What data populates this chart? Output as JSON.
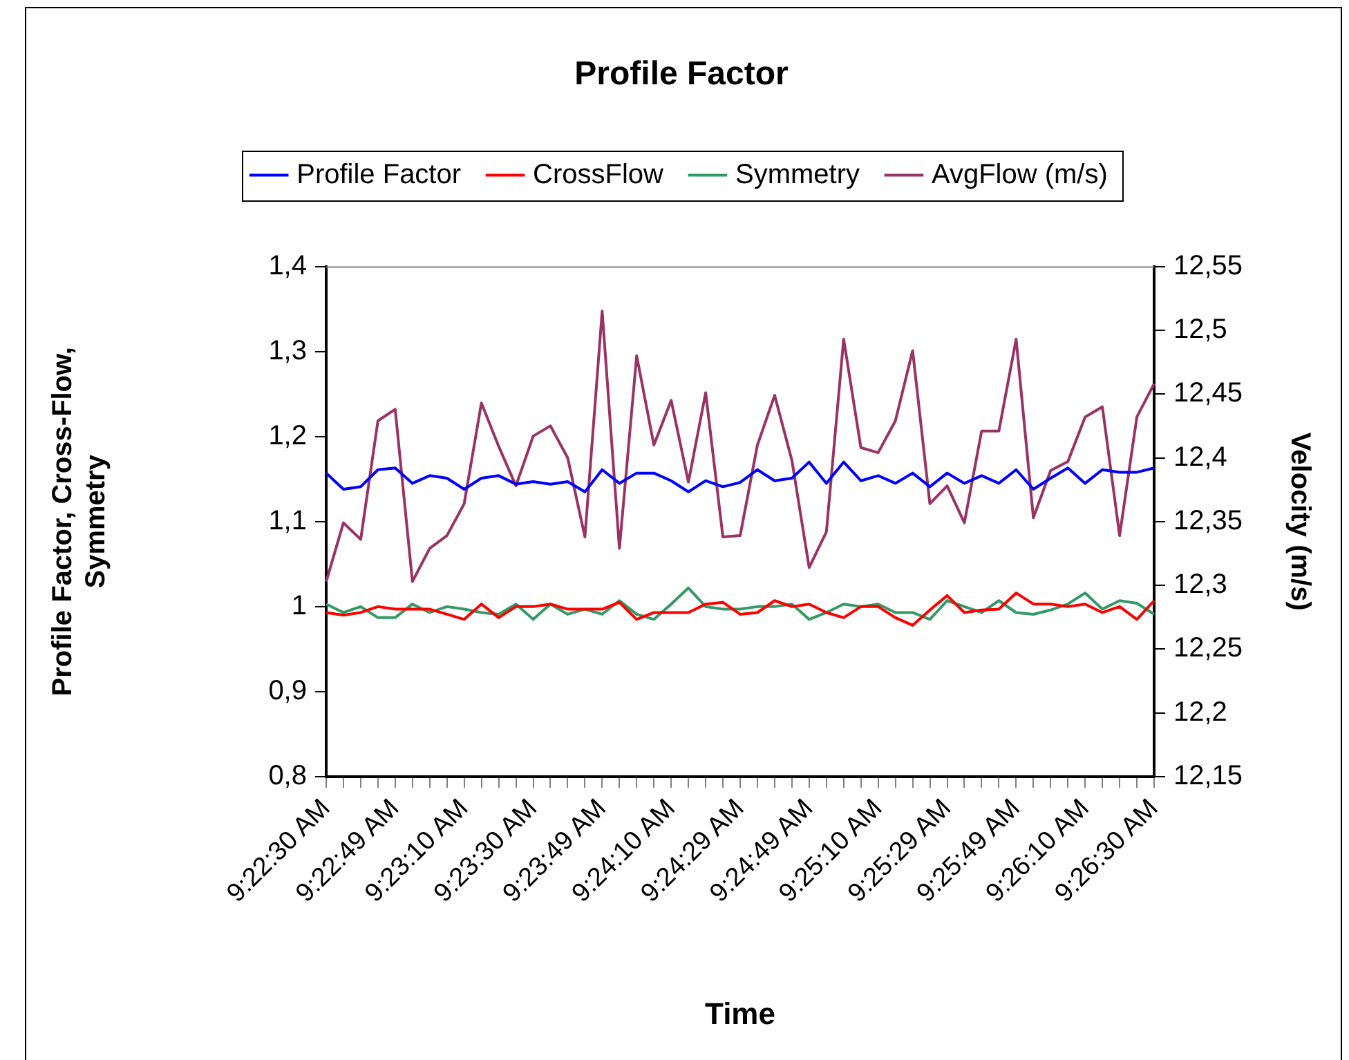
{
  "chart_data": {
    "type": "line",
    "title": "Profile Factor",
    "xlabel": "Time",
    "ylabel": "Profile Factor, Cross-Flow, Symmetry",
    "y2label": "Velocity (m/s)",
    "legend": "top",
    "marker": "none",
    "line_style": "solid",
    "categories": [
      "9:22:30 AM",
      null,
      null,
      null,
      "9:22:49 AM",
      null,
      null,
      null,
      "9:23:10 AM",
      null,
      null,
      null,
      "9:23:30 AM",
      null,
      null,
      null,
      "9:23:49 AM",
      null,
      null,
      null,
      "9:24:10 AM",
      null,
      null,
      null,
      "9:24:29 AM",
      null,
      null,
      null,
      "9:24:49 AM",
      null,
      null,
      null,
      "9:25:10 AM",
      null,
      null,
      null,
      "9:25:29 AM",
      null,
      null,
      null,
      "9:25:49 AM",
      null,
      null,
      null,
      "9:26:10 AM",
      null,
      null,
      null,
      "9:26:30 AM"
    ],
    "ylim": [
      0.8,
      1.4
    ],
    "yticks": [
      {
        "value": 0.8,
        "label": "0,8"
      },
      {
        "value": 0.9,
        "label": "0,9"
      },
      1,
      {
        "value": 1.1,
        "label": "1,1"
      },
      {
        "value": 1.2,
        "label": "1,2"
      },
      {
        "value": 1.3,
        "label": "1,3"
      },
      {
        "value": 1.4,
        "label": "1,4"
      }
    ],
    "y2lim": [
      12.15,
      12.55
    ],
    "y2ticks": [
      {
        "value": 12.15,
        "label": "12,15"
      },
      {
        "value": 12.2,
        "label": "12,2"
      },
      {
        "value": 12.25,
        "label": "12,25"
      },
      {
        "value": 12.3,
        "label": "12,3"
      },
      {
        "value": 12.35,
        "label": "12,35"
      },
      {
        "value": 12.4,
        "label": "12,4"
      },
      {
        "value": 12.45,
        "label": "12,45"
      },
      {
        "value": 12.5,
        "label": "12,5"
      },
      {
        "value": 12.55,
        "label": "12,55"
      }
    ],
    "series": [
      {
        "name": "Profile Factor",
        "color": "#0000ff",
        "values": [
          1.157,
          1.138,
          1.141,
          1.161,
          1.163,
          1.145,
          1.154,
          1.151,
          1.138,
          1.151,
          1.154,
          1.144,
          1.147,
          1.144,
          1.147,
          1.135,
          1.161,
          1.145,
          1.157,
          1.157,
          1.148,
          1.135,
          1.148,
          1.141,
          1.146,
          1.161,
          1.148,
          1.151,
          1.17,
          1.145,
          1.17,
          1.148,
          1.154,
          1.145,
          1.157,
          1.141,
          1.157,
          1.145,
          1.154,
          1.145,
          1.161,
          1.138,
          1.151,
          1.163,
          1.145,
          1.161,
          1.158,
          1.158,
          1.163
        ]
      },
      {
        "name": "CrossFlow",
        "color": "#ff0000",
        "values": [
          0.993,
          0.99,
          0.993,
          1,
          0.997,
          0.997,
          0.997,
          0.991,
          0.985,
          1.003,
          0.987,
          1,
          1,
          1.003,
          0.997,
          0.997,
          0.997,
          1.005,
          0.985,
          0.993,
          0.993,
          0.993,
          1.003,
          1.005,
          0.991,
          0.993,
          1.007,
          1,
          1.003,
          0.993,
          0.987,
          1,
          1,
          0.987,
          0.978,
          0.996,
          1.013,
          0.993,
          0.996,
          0.997,
          1.016,
          1.003,
          1.003,
          1,
          1.003,
          0.993,
          1,
          0.985,
          1.007
        ]
      },
      {
        "name": "Symmetry",
        "color": "#339966",
        "values": [
          1.003,
          0.993,
          1,
          0.987,
          0.987,
          1.003,
          0.993,
          1,
          0.997,
          0.993,
          0.991,
          1.003,
          0.985,
          1.003,
          0.991,
          0.997,
          0.991,
          1.007,
          0.991,
          0.985,
          1.003,
          1.022,
          1,
          0.997,
          0.997,
          1,
          1,
          1.003,
          0.985,
          0.993,
          1.003,
          1,
          1.003,
          0.993,
          0.993,
          0.985,
          1.007,
          1,
          0.993,
          1.007,
          0.993,
          0.991,
          0.996,
          1.003,
          1.016,
          0.997,
          1.007,
          1.004,
          0.991
        ]
      },
      {
        "name": "AvgFlow (m/s)",
        "color": "#993366",
        "axis": "y2",
        "values": [
          12.303,
          12.349,
          12.336,
          12.429,
          12.438,
          12.303,
          12.329,
          12.339,
          12.364,
          12.443,
          12.409,
          12.378,
          12.417,
          12.425,
          12.4,
          12.338,
          12.515,
          12.329,
          12.48,
          12.41,
          12.445,
          12.381,
          12.451,
          12.338,
          12.339,
          12.41,
          12.449,
          12.398,
          12.314,
          12.342,
          12.493,
          12.408,
          12.404,
          12.429,
          12.484,
          12.364,
          12.378,
          12.349,
          12.421,
          12.421,
          12.493,
          12.353,
          12.39,
          12.397,
          12.432,
          12.44,
          12.339,
          12.432,
          12.458
        ]
      }
    ]
  }
}
